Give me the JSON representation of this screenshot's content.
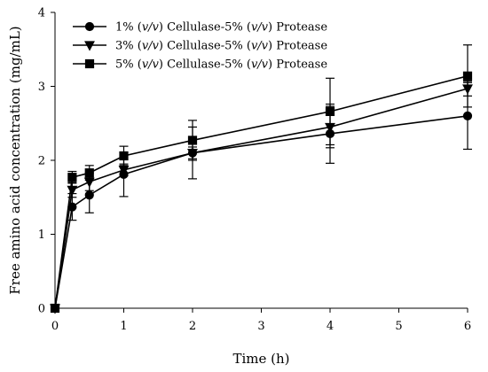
{
  "chart_data": {
    "type": "line",
    "xlabel": "Time (h)",
    "ylabel": "Free amino acid concentration (mg/mL)",
    "xlim": [
      0,
      6
    ],
    "ylim": [
      0,
      4
    ],
    "x_ticks": [
      0,
      1,
      2,
      3,
      4,
      5,
      6
    ],
    "y_ticks": [
      0,
      1,
      2,
      3,
      4
    ],
    "grid": false,
    "legend_position": "top-left",
    "x": [
      0,
      0.25,
      0.5,
      1,
      2,
      4,
      6
    ],
    "series": [
      {
        "name": "1% (v/v) Cellulase-5% (v/v) Protease",
        "legend_parts": [
          "1% (",
          "v/v",
          ") Cellulase-5% (",
          "v/v",
          ") Protease"
        ],
        "marker": "circle",
        "values": [
          0,
          1.37,
          1.53,
          1.81,
          2.1,
          2.36,
          2.6
        ],
        "errors": [
          0,
          0.18,
          0.24,
          0.3,
          0.35,
          0.4,
          0.45
        ]
      },
      {
        "name": "3% (v/v) Cellulase-5% (v/v) Protease",
        "legend_parts": [
          "3% (",
          "v/v",
          ") Cellulase-5% (",
          "v/v",
          ") Protease"
        ],
        "marker": "triangle-down",
        "values": [
          0,
          1.6,
          1.71,
          1.87,
          2.1,
          2.45,
          2.97
        ],
        "errors": [
          0,
          0.1,
          0.12,
          0.08,
          0.08,
          0.28,
          0.1
        ]
      },
      {
        "name": "5% (v/v) Cellulase-5% (v/v) Protease",
        "legend_parts": [
          "5% (",
          "v/v",
          ") Cellulase-5% (",
          "v/v",
          ") Protease"
        ],
        "marker": "square",
        "values": [
          0,
          1.77,
          1.83,
          2.06,
          2.27,
          2.66,
          3.14
        ],
        "errors": [
          0,
          0.08,
          0.1,
          0.13,
          0.27,
          0.45,
          0.42
        ]
      }
    ]
  }
}
